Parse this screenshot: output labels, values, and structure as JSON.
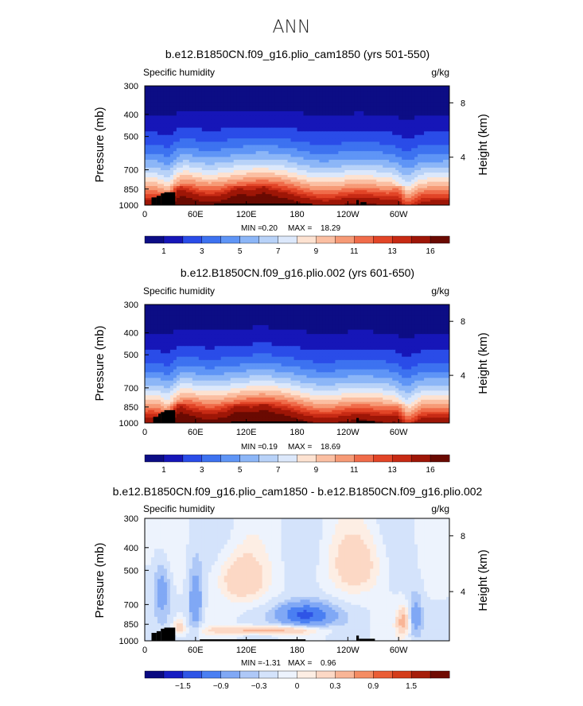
{
  "page": {
    "title": "ANN"
  },
  "colors": {
    "abs_fills": [
      "#0c0d85",
      "#1616b8",
      "#2a4ce8",
      "#3d72f0",
      "#5f95f6",
      "#8cb6f7",
      "#b8d2f8",
      "#dce8fb",
      "#fde2d1",
      "#fbbfa2",
      "#f69a76",
      "#f06c4a",
      "#e24527",
      "#c72a14",
      "#9e1607",
      "#6a0a02"
    ],
    "diff_fills": [
      "#0a0a80",
      "#161dc2",
      "#2f55e6",
      "#4a7ff2",
      "#80a8f5",
      "#aec8f7",
      "#d4e3fb",
      "#edf3fd",
      "#fdeee4",
      "#fcd8c5",
      "#f9b596",
      "#f48c63",
      "#ea5d35",
      "#d43c1a",
      "#a61e0a",
      "#700b02"
    ]
  },
  "chart_data": [
    {
      "type": "heatmap",
      "title": "b.e12.B1850CN.f09_g16.plio_cam1850 (yrs 501-550)",
      "variable_label": "Specific humidity",
      "units": "g/kg",
      "ylabel": "Pressure (mb)",
      "ylabel_right": "Height (km)",
      "x_ticks": [
        "0",
        "60E",
        "120E",
        "180",
        "120W",
        "60W"
      ],
      "x_tick_values": [
        0,
        60,
        120,
        180,
        240,
        300
      ],
      "xlim": [
        0,
        360
      ],
      "y_ticks": [
        "300",
        "400",
        "500",
        "700",
        "850",
        "1000"
      ],
      "y_tick_values": [
        300,
        400,
        500,
        700,
        850,
        1000
      ],
      "ylim": [
        300,
        1000
      ],
      "y_scale": "log",
      "height_ticks": [
        "8",
        "4"
      ],
      "height_tick_values": [
        8,
        4
      ],
      "min_label": "MIN =",
      "min_value": "0.20",
      "max_label": "MAX =",
      "max_value": "18.29",
      "colorbar_labels": [
        "1",
        "3",
        "5",
        "7",
        "9",
        "11",
        "13",
        "16"
      ],
      "field": "abs",
      "variant": 0,
      "topography_blocks": [
        [
          8,
          14,
          925
        ],
        [
          14,
          19,
          910
        ],
        [
          19,
          23,
          888
        ],
        [
          23,
          36,
          878
        ],
        [
          82,
          198,
          985
        ],
        [
          250,
          253,
          950
        ],
        [
          255,
          262,
          970
        ]
      ]
    },
    {
      "type": "heatmap",
      "title": "b.e12.B1850CN.f09_g16.plio.002 (yrs 601-650)",
      "variable_label": "Specific humidity",
      "units": "g/kg",
      "ylabel": "Pressure (mb)",
      "ylabel_right": "Height (km)",
      "x_ticks": [
        "0",
        "60E",
        "120E",
        "180",
        "120W",
        "60W"
      ],
      "x_tick_values": [
        0,
        60,
        120,
        180,
        240,
        300
      ],
      "xlim": [
        0,
        360
      ],
      "y_ticks": [
        "300",
        "400",
        "500",
        "700",
        "850",
        "1000"
      ],
      "y_tick_values": [
        300,
        400,
        500,
        700,
        850,
        1000
      ],
      "ylim": [
        300,
        1000
      ],
      "y_scale": "log",
      "height_ticks": [
        "8",
        "4"
      ],
      "height_tick_values": [
        8,
        4
      ],
      "min_label": "MIN =",
      "min_value": "0.19",
      "max_label": "MAX =",
      "max_value": "18.69",
      "colorbar_labels": [
        "1",
        "3",
        "5",
        "7",
        "9",
        "11",
        "13",
        "16"
      ],
      "field": "abs",
      "variant": 1,
      "topography_blocks": [
        [
          10,
          16,
          940
        ],
        [
          16,
          19,
          910
        ],
        [
          19,
          23,
          895
        ],
        [
          23,
          36,
          878
        ],
        [
          102,
          192,
          985
        ],
        [
          250,
          253,
          950
        ],
        [
          253,
          272,
          980
        ]
      ]
    },
    {
      "type": "heatmap",
      "title": "b.e12.B1850CN.f09_g16.plio_cam1850 - b.e12.B1850CN.f09_g16.plio.002",
      "variable_label": "Specific humidity",
      "units": "g/kg",
      "ylabel": "Pressure (mb)",
      "ylabel_right": "Height (km)",
      "x_ticks": [
        "0",
        "60E",
        "120E",
        "180",
        "120W",
        "60W"
      ],
      "x_tick_values": [
        0,
        60,
        120,
        180,
        240,
        300
      ],
      "xlim": [
        0,
        360
      ],
      "y_ticks": [
        "300",
        "400",
        "500",
        "700",
        "850",
        "1000"
      ],
      "y_tick_values": [
        300,
        400,
        500,
        700,
        850,
        1000
      ],
      "ylim": [
        300,
        1000
      ],
      "y_scale": "log",
      "height_ticks": [
        "8",
        "4"
      ],
      "height_tick_values": [
        8,
        4
      ],
      "min_label": "MIN =",
      "min_value": "-1.31",
      "max_label": "MAX =",
      "max_value": "0.96",
      "colorbar_labels": [
        "−1.5",
        "−0.9",
        "−0.3",
        "0",
        "0.3",
        "0.9",
        "1.5"
      ],
      "field": "diff",
      "variant": 2,
      "topography_blocks": [
        [
          8,
          14,
          925
        ],
        [
          14,
          19,
          910
        ],
        [
          19,
          23,
          888
        ],
        [
          23,
          36,
          878
        ],
        [
          65,
          190,
          985
        ],
        [
          250,
          253,
          950
        ],
        [
          253,
          272,
          980
        ]
      ]
    }
  ]
}
